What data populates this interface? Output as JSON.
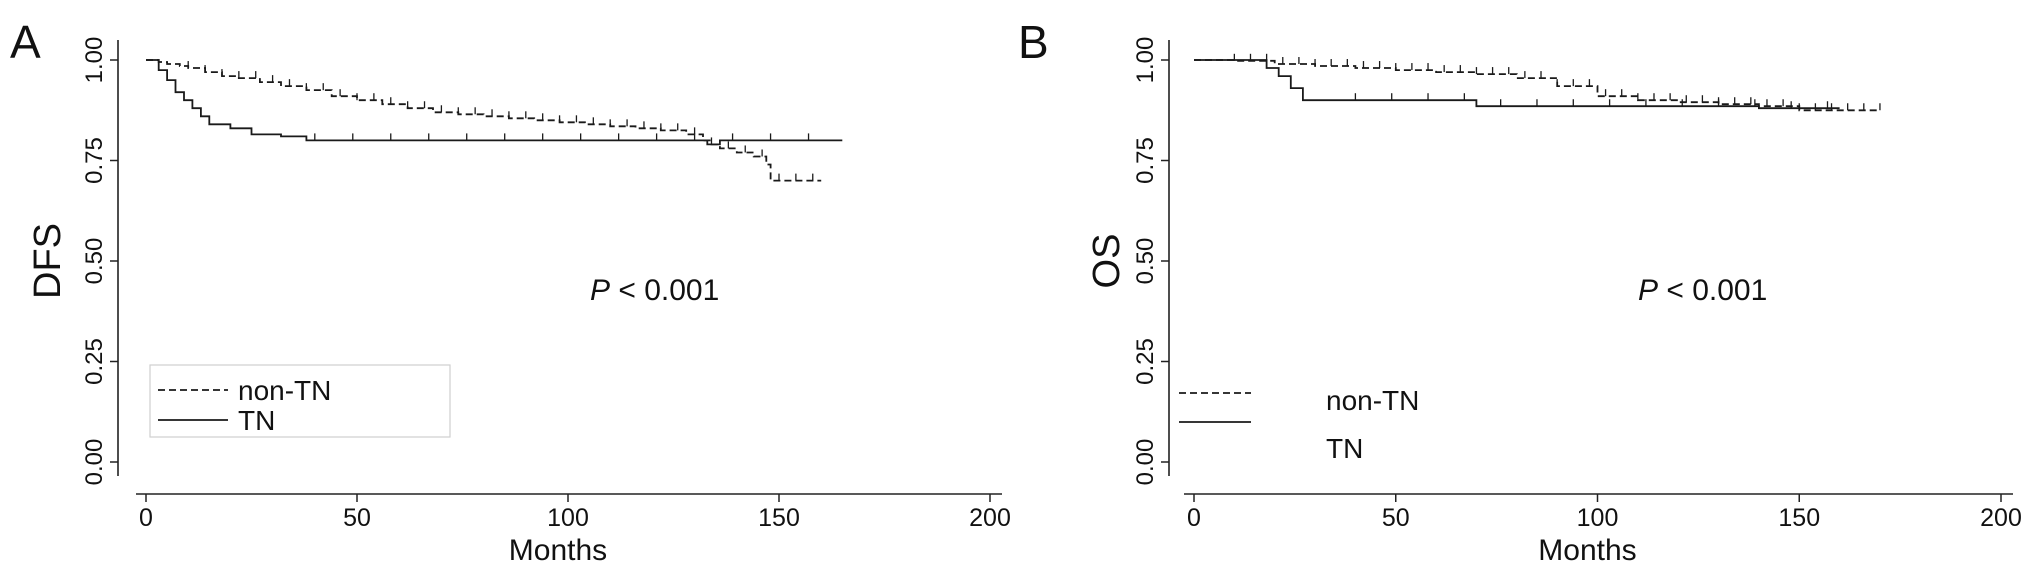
{
  "chart_data": [
    {
      "type": "line",
      "panel_label": "A",
      "xlabel": "Months",
      "ylabel": "DFS",
      "xlim": [
        0,
        200
      ],
      "ylim": [
        0,
        1
      ],
      "x_ticks": [
        "0",
        "50",
        "100",
        "150",
        "200"
      ],
      "y_ticks": [
        "0.00",
        "0.25",
        "0.50",
        "0.75",
        "1.00"
      ],
      "annotation": {
        "italic": "P",
        "text": " < 0.001"
      },
      "legend": {
        "placement": "bottom-left",
        "entries": [
          "non-TN",
          "TN"
        ]
      },
      "series": [
        {
          "name": "non-TN",
          "style": "dashed",
          "x": [
            0,
            3,
            5,
            8,
            10,
            14,
            18,
            22,
            27,
            32,
            38,
            44,
            50,
            56,
            62,
            68,
            74,
            80,
            86,
            92,
            98,
            104,
            110,
            116,
            122,
            128,
            132,
            134,
            136,
            140,
            144,
            147,
            148,
            160
          ],
          "y": [
            1.0,
            0.995,
            0.99,
            0.985,
            0.98,
            0.97,
            0.96,
            0.955,
            0.945,
            0.935,
            0.925,
            0.91,
            0.9,
            0.89,
            0.88,
            0.87,
            0.865,
            0.86,
            0.855,
            0.85,
            0.845,
            0.84,
            0.835,
            0.83,
            0.825,
            0.815,
            0.8,
            0.79,
            0.78,
            0.77,
            0.76,
            0.74,
            0.7,
            0.7
          ]
        },
        {
          "name": "TN",
          "style": "solid",
          "x": [
            0,
            3,
            5,
            7,
            9,
            11,
            13,
            15,
            20,
            25,
            32,
            38,
            60,
            80,
            100,
            120,
            130,
            133,
            136,
            150,
            165
          ],
          "y": [
            1.0,
            0.975,
            0.95,
            0.92,
            0.9,
            0.88,
            0.86,
            0.84,
            0.83,
            0.815,
            0.81,
            0.8,
            0.8,
            0.8,
            0.8,
            0.8,
            0.8,
            0.79,
            0.8,
            0.8,
            0.8
          ]
        }
      ]
    },
    {
      "type": "line",
      "panel_label": "B",
      "xlabel": "Months",
      "ylabel": "OS",
      "xlim": [
        0,
        200
      ],
      "ylim": [
        0,
        1
      ],
      "x_ticks": [
        "0",
        "50",
        "100",
        "150",
        "200"
      ],
      "y_ticks": [
        "0.00",
        "0.25",
        "0.50",
        "0.75",
        "1.00"
      ],
      "annotation": {
        "italic": "P",
        "text": " < 0.001"
      },
      "legend": {
        "placement": "bottom-left",
        "entries": [
          "non-TN",
          "TN"
        ]
      },
      "series": [
        {
          "name": "non-TN",
          "style": "dashed",
          "x": [
            0,
            10,
            20,
            30,
            40,
            50,
            60,
            70,
            80,
            90,
            100,
            110,
            120,
            130,
            140,
            150,
            160,
            170
          ],
          "y": [
            1.0,
            0.998,
            0.99,
            0.985,
            0.98,
            0.975,
            0.97,
            0.965,
            0.955,
            0.935,
            0.91,
            0.9,
            0.895,
            0.89,
            0.885,
            0.875,
            0.875,
            0.875
          ]
        },
        {
          "name": "TN",
          "style": "solid",
          "x": [
            0,
            15,
            18,
            21,
            24,
            27,
            40,
            50,
            60,
            70,
            100,
            130,
            140,
            160
          ],
          "y": [
            1.0,
            1.0,
            0.98,
            0.96,
            0.93,
            0.9,
            0.9,
            0.9,
            0.9,
            0.885,
            0.885,
            0.885,
            0.88,
            0.88
          ]
        }
      ]
    }
  ]
}
